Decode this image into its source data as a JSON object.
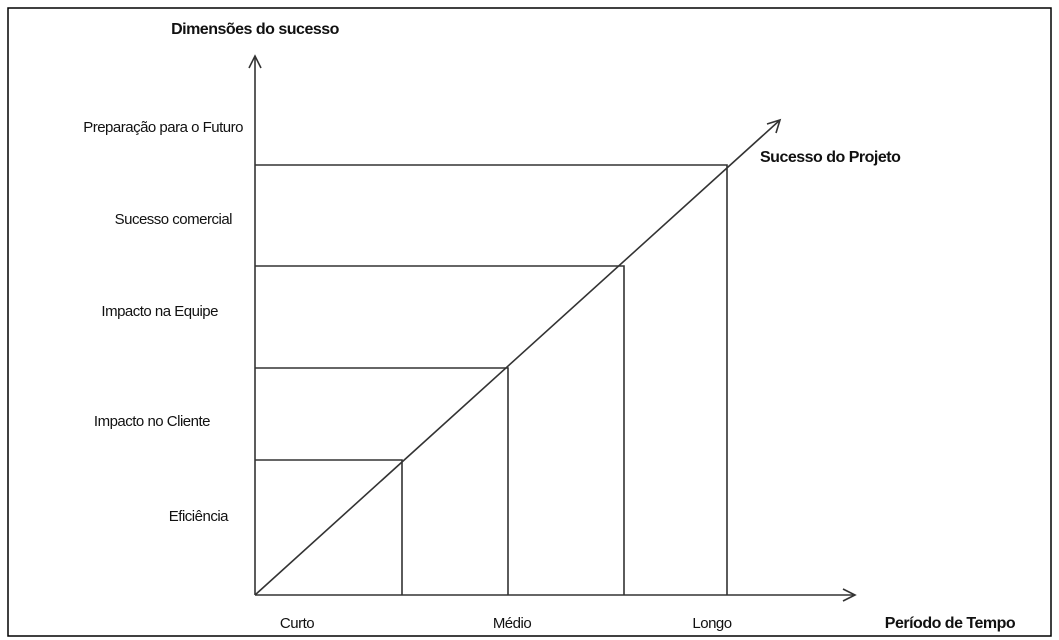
{
  "diagram": {
    "y_axis_title": "Dimensões do sucesso",
    "x_axis_title": "Período de Tempo",
    "line_label": "Sucesso do Projeto",
    "levels": [
      "Preparação para o Futuro",
      "Sucesso comercial",
      "Impacto na Equipe",
      "Impacto no Cliente",
      "Eficiência"
    ],
    "periods": [
      "Curto",
      "Médio",
      "Longo"
    ]
  }
}
